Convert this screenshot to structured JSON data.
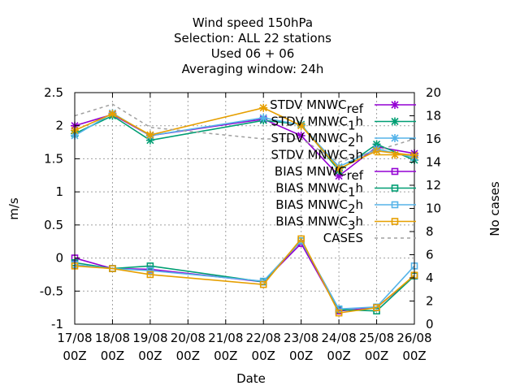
{
  "chart_data": {
    "type": "line",
    "title_lines": [
      "Wind speed 150hPa",
      "Selection: ALL      22 stations",
      "Used  06 + 06",
      "Averaging window: 24h"
    ],
    "xlabel": "Date",
    "ylabel": "m/s",
    "y2label": "No cases",
    "x_ticks": [
      {
        "top": "17/08",
        "bottom": "00Z"
      },
      {
        "top": "18/08",
        "bottom": "00Z"
      },
      {
        "top": "19/08",
        "bottom": "00Z"
      },
      {
        "top": "20/08",
        "bottom": "00Z"
      },
      {
        "top": "21/08",
        "bottom": "00Z"
      },
      {
        "top": "22/08",
        "bottom": "00Z"
      },
      {
        "top": "23/08",
        "bottom": "00Z"
      },
      {
        "top": "24/08",
        "bottom": "00Z"
      },
      {
        "top": "25/08",
        "bottom": "00Z"
      },
      {
        "top": "26/08",
        "bottom": "00Z"
      }
    ],
    "xlim": [
      0,
      9
    ],
    "ylim": [
      -1,
      2.5
    ],
    "y2lim": [
      0,
      20
    ],
    "y_ticks": [
      "-1",
      "-0.5",
      "0",
      "0.5",
      "1",
      "1.5",
      "2",
      "2.5"
    ],
    "y2_ticks": [
      "0",
      "2",
      "4",
      "6",
      "8",
      "10",
      "12",
      "14",
      "16",
      "18",
      "20"
    ],
    "grid": true,
    "legend_position": "top-right",
    "series": [
      {
        "name": "STDV MNWC_ref",
        "label_main": "STDV MNWC",
        "label_sub": "ref",
        "color": "#9400d3",
        "marker": "star",
        "axis": "y",
        "x": [
          0,
          1,
          2,
          5,
          6,
          7,
          8,
          9
        ],
        "values": [
          2.0,
          2.17,
          1.85,
          2.1,
          1.85,
          1.24,
          1.68,
          1.58
        ]
      },
      {
        "name": "STDV MNWC_1h",
        "label_main": "STDV MNWC",
        "label_sub": "1",
        "label_tail": "h",
        "color": "#009e73",
        "marker": "star",
        "axis": "y",
        "x": [
          0,
          1,
          2,
          5,
          6,
          7,
          8,
          9
        ],
        "values": [
          1.88,
          2.15,
          1.78,
          2.08,
          2.02,
          1.32,
          1.72,
          1.48
        ]
      },
      {
        "name": "STDV MNWC_2h",
        "label_main": "STDV MNWC",
        "label_sub": "2",
        "label_tail": "h",
        "color": "#56b4e9",
        "marker": "star",
        "axis": "y",
        "x": [
          0,
          1,
          2,
          5,
          6,
          7,
          8,
          9
        ],
        "values": [
          1.85,
          2.19,
          1.85,
          2.12,
          2.01,
          1.38,
          1.65,
          1.52
        ]
      },
      {
        "name": "STDV MNWC_3h",
        "label_main": "STDV MNWC",
        "label_sub": "3",
        "label_tail": "h",
        "color": "#e69f00",
        "marker": "star",
        "axis": "y",
        "x": [
          0,
          1,
          2,
          5,
          6,
          7,
          8,
          9
        ],
        "values": [
          1.93,
          2.18,
          1.86,
          2.27,
          2.0,
          1.35,
          1.62,
          1.55
        ]
      },
      {
        "name": "BIAS MNWC_ref",
        "label_main": "BIAS MNWC",
        "label_sub": "ref",
        "color": "#9400d3",
        "marker": "square",
        "axis": "y",
        "x": [
          0,
          1,
          2,
          5,
          6,
          7,
          8,
          9
        ],
        "values": [
          0.0,
          -0.16,
          -0.17,
          -0.36,
          0.22,
          -0.8,
          -0.75,
          -0.27
        ]
      },
      {
        "name": "BIAS MNWC_1h",
        "label_main": "BIAS MNWC",
        "label_sub": "1",
        "label_tail": "h",
        "color": "#009e73",
        "marker": "square",
        "axis": "y",
        "x": [
          0,
          1,
          2,
          5,
          6,
          7,
          8,
          9
        ],
        "values": [
          -0.07,
          -0.16,
          -0.12,
          -0.36,
          0.26,
          -0.78,
          -0.8,
          -0.27
        ]
      },
      {
        "name": "BIAS MNWC_2h",
        "label_main": "BIAS MNWC",
        "label_sub": "2",
        "label_tail": "h",
        "color": "#56b4e9",
        "marker": "square",
        "axis": "y",
        "x": [
          0,
          1,
          2,
          5,
          6,
          7,
          8,
          9
        ],
        "values": [
          -0.1,
          -0.16,
          -0.19,
          -0.35,
          0.26,
          -0.77,
          -0.74,
          -0.12
        ]
      },
      {
        "name": "BIAS MNWC_3h",
        "label_main": "BIAS MNWC",
        "label_sub": "3",
        "label_tail": "h",
        "color": "#e69f00",
        "marker": "square",
        "axis": "y",
        "x": [
          0,
          1,
          2,
          5,
          6,
          7,
          8,
          9
        ],
        "values": [
          -0.12,
          -0.16,
          -0.25,
          -0.4,
          0.29,
          -0.83,
          -0.75,
          -0.26
        ]
      },
      {
        "name": "CASES",
        "label_main": "CASES",
        "color": "#a0a0a0",
        "marker": "none",
        "dashed": true,
        "axis": "y2",
        "x": [
          0,
          1,
          2,
          5,
          6,
          7,
          8,
          9
        ],
        "values": [
          18,
          19,
          17,
          16,
          16,
          14,
          15,
          16
        ]
      }
    ]
  }
}
